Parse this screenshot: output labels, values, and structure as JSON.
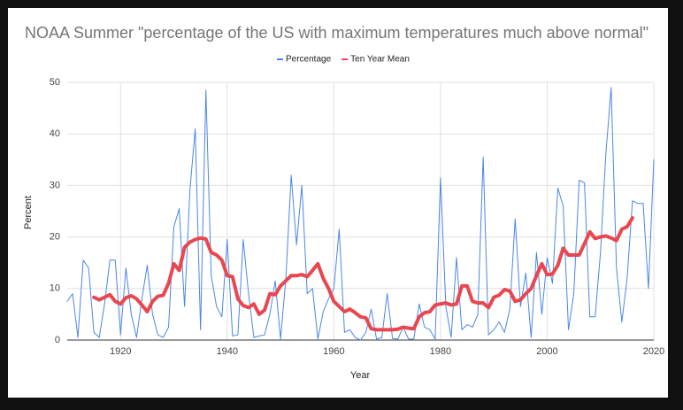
{
  "chart_data": {
    "type": "line",
    "title": "NOAA Summer \"percentage of the US with maximum temperatures much above normal\"",
    "xlabel": "Year",
    "ylabel": "Percent",
    "legend": "top",
    "grid": true,
    "x": [
      1910,
      1911,
      1912,
      1913,
      1914,
      1915,
      1916,
      1917,
      1918,
      1919,
      1920,
      1921,
      1922,
      1923,
      1924,
      1925,
      1926,
      1927,
      1928,
      1929,
      1930,
      1931,
      1932,
      1933,
      1934,
      1935,
      1936,
      1937,
      1938,
      1939,
      1940,
      1941,
      1942,
      1943,
      1944,
      1945,
      1946,
      1947,
      1948,
      1949,
      1950,
      1951,
      1952,
      1953,
      1954,
      1955,
      1956,
      1957,
      1958,
      1959,
      1960,
      1961,
      1962,
      1963,
      1964,
      1965,
      1966,
      1967,
      1968,
      1969,
      1970,
      1971,
      1972,
      1973,
      1974,
      1975,
      1976,
      1977,
      1978,
      1979,
      1980,
      1981,
      1982,
      1983,
      1984,
      1985,
      1986,
      1987,
      1988,
      1989,
      1990,
      1991,
      1992,
      1993,
      1994,
      1995,
      1996,
      1997,
      1998,
      1999,
      2000,
      2001,
      2002,
      2003,
      2004,
      2005,
      2006,
      2007,
      2008,
      2009,
      2010,
      2011,
      2012,
      2013,
      2014,
      2015,
      2016,
      2017,
      2018,
      2019,
      2020
    ],
    "series": [
      {
        "name": "Percentage",
        "color": "#4a86e8",
        "width": 1,
        "values": [
          7.5,
          9,
          0.5,
          15.5,
          14,
          1.5,
          0.5,
          7,
          15.5,
          15.5,
          1,
          14,
          5,
          0.5,
          8,
          14.5,
          5,
          1,
          0.5,
          2.5,
          22,
          25.5,
          6.5,
          29,
          41,
          2,
          48.5,
          12.5,
          6.5,
          4.5,
          19.5,
          0.8,
          1,
          19.5,
          9,
          0.5,
          0.8,
          1,
          5,
          11.5,
          0.2,
          12,
          32,
          18.5,
          30,
          9,
          10,
          0.2,
          5.5,
          8,
          10,
          21.5,
          1.5,
          2,
          0.5,
          0,
          1.5,
          6,
          0.2,
          0.5,
          9,
          0.3,
          0.2,
          2.5,
          0.2,
          0.2,
          7,
          2.5,
          2,
          0.2,
          31.5,
          6.5,
          0.5,
          16,
          2,
          3,
          2.5,
          5,
          35.5,
          1,
          2,
          3.5,
          1.5,
          6,
          23.5,
          6.5,
          13,
          0.5,
          17,
          5,
          16,
          11,
          29.5,
          26,
          2,
          9,
          31,
          30.5,
          4.5,
          4.5,
          17,
          36,
          49,
          14,
          3.5,
          12,
          27,
          26.5,
          26.5,
          10,
          35
        ]
      },
      {
        "name": "Ten Year Mean",
        "color": "#e8474f",
        "width": 4,
        "values": [
          null,
          null,
          null,
          null,
          null,
          8.3,
          7.8,
          8.3,
          8.8,
          7.5,
          7,
          8.2,
          8.6,
          8,
          6.8,
          5.5,
          7.5,
          8.5,
          8.7,
          11,
          14.8,
          13.5,
          18,
          19,
          19.5,
          19.8,
          19.6,
          17,
          16.5,
          15.5,
          12.5,
          12.3,
          8,
          6.7,
          6.3,
          7,
          5,
          5.8,
          9,
          8.8,
          10.5,
          11.5,
          12.5,
          12.5,
          12.7,
          12.3,
          13.5,
          14.8,
          12,
          10,
          7.5,
          6.5,
          5.5,
          6,
          5.3,
          4.5,
          4.3,
          2.2,
          2,
          2,
          2,
          2,
          2.1,
          2.5,
          2.3,
          2.2,
          4.5,
          5.3,
          5.5,
          6.8,
          7,
          7.2,
          6.8,
          7,
          10.5,
          10.5,
          7.5,
          7.2,
          7.2,
          6.3,
          8.3,
          8.7,
          9.8,
          9.5,
          7.5,
          7.8,
          9,
          10,
          12.5,
          14.8,
          12.7,
          12.8,
          14.5,
          17.8,
          16.5,
          16.5,
          16.5,
          18.7,
          21,
          19.7,
          20,
          20.2,
          19.8,
          19.3,
          21.5,
          22,
          23.7,
          null,
          null,
          null,
          null
        ]
      }
    ],
    "xlim": [
      1910,
      2020
    ],
    "xticks": [
      1920,
      1940,
      1960,
      1980,
      2000,
      2020
    ],
    "ylim": [
      0,
      50
    ],
    "yticks": [
      0,
      10,
      20,
      30,
      40,
      50
    ]
  }
}
